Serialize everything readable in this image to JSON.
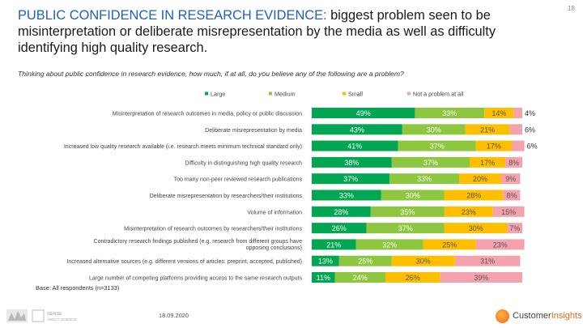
{
  "page": {
    "title_lead": "PUBLIC CONFIDENCE IN RESEARCH EVIDENCE:",
    "title_rest": " biggest problem seen to be misinterpretation or deliberate misrepresentation by the media as well as difficulty identifying high quality research.",
    "slide_number": "18",
    "question": "Thinking about public confidence in research evidence, how much, if at all, do you believe any of the following are a problem?",
    "base_note": "Base: All respondents (n=3133)",
    "date": "18.09.2020",
    "logo_right_prefix": "Customer",
    "logo_right_suffix": "Insights",
    "logo_left_line1": "SENSE",
    "logo_left_line2": "ABOUT SCIENCE"
  },
  "chart_data": {
    "type": "bar",
    "orientation": "horizontal",
    "stacked": true,
    "value_suffix": "%",
    "legend_position": "top",
    "categories": [
      "Misinterpretation of research outcomes in media, policy or public discussion",
      "Deliberate misrepresentation by media",
      "Increased low quality research available (i.e. research meets minimum technical standard only)",
      "Difficulty in distinguishing high quality research",
      "Too many non-peer reviewed research publications",
      "Deliberate misrepresentation by researchers/their institutions",
      "Volume of information",
      "Misinterpretation of research outcomes by researchers/their institutions",
      "Contradictory research findings published (e.g. research from different groups have opposing conclusions)",
      "Increased alternative sources (e.g. different versions of articles: preprint, accepted, published)",
      "Large number of competing platforms providing access to the same research outputs"
    ],
    "series": [
      {
        "name": "Large",
        "color": "#00a651",
        "values": [
          49,
          43,
          41,
          38,
          37,
          33,
          28,
          26,
          21,
          13,
          11
        ]
      },
      {
        "name": "Medium",
        "color": "#8dc63f",
        "values": [
          33,
          30,
          37,
          37,
          33,
          30,
          35,
          37,
          32,
          25,
          24
        ]
      },
      {
        "name": "Small",
        "color": "#ffbf00",
        "values": [
          14,
          21,
          17,
          17,
          20,
          28,
          23,
          30,
          25,
          30,
          26
        ]
      },
      {
        "name": "Not a problem at all",
        "color": "#f4a3ae",
        "values": [
          4,
          6,
          6,
          8,
          9,
          8,
          15,
          7,
          23,
          31,
          39
        ]
      }
    ],
    "xlim": [
      0,
      100
    ]
  }
}
